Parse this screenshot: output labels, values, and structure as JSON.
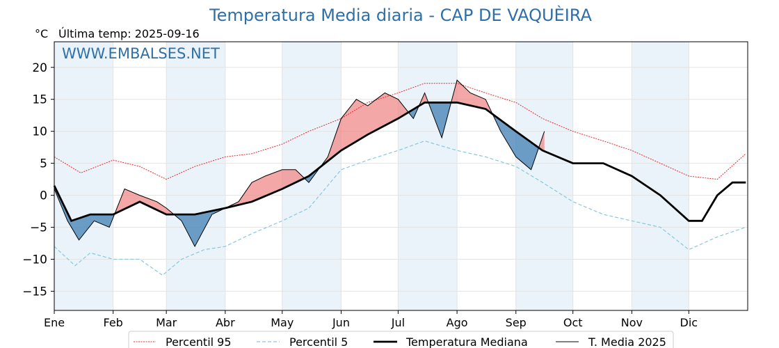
{
  "chart_data": {
    "type": "line",
    "title": "Temperatura Media diaria - CAP DE VAQUÈIRA",
    "ylabel": "°C",
    "last_update": "Última temp: 2025-09-16",
    "watermark": "WWW.EMBALSES.NET",
    "ylim": [
      -18,
      24
    ],
    "yticks": [
      "20",
      "15",
      "10",
      "5",
      "0",
      "−5",
      "−10",
      "−15"
    ],
    "ytick_values": [
      20,
      15,
      10,
      5,
      0,
      -5,
      -10,
      -15
    ],
    "months": [
      "Ene",
      "Feb",
      "Mar",
      "Abr",
      "May",
      "Jun",
      "Jul",
      "Ago",
      "Sep",
      "Oct",
      "Nov",
      "Dic"
    ],
    "month_start_days": [
      1,
      32,
      60,
      91,
      121,
      152,
      182,
      213,
      244,
      274,
      305,
      335
    ],
    "legend": {
      "p95": "Percentil 95",
      "p5": "Percentil 5",
      "median": "Temperatura Mediana",
      "y2025": "T. Media 2025"
    },
    "colors": {
      "p95": "#e8262a",
      "p5": "#87c8dc",
      "median": "#000000",
      "y2025": "#000000",
      "above": "#f08a8a",
      "below": "#3f7fb3",
      "band": "#eaf2fa",
      "grid": "#e3e3e3"
    },
    "series": [
      {
        "name": "Percentil 95",
        "key": "p95",
        "x": [
          1,
          15,
          32,
          46,
          60,
          75,
          91,
          105,
          121,
          135,
          152,
          166,
          182,
          196,
          213,
          228,
          244,
          258,
          274,
          290,
          305,
          320,
          335,
          350,
          365
        ],
        "values": [
          6,
          3.5,
          5.5,
          4.5,
          2.5,
          4.5,
          6,
          6.5,
          8,
          10,
          12,
          14.5,
          16,
          17.5,
          17.5,
          16,
          14.5,
          12,
          10,
          8.5,
          7,
          5,
          3,
          2.5,
          6.5
        ]
      },
      {
        "name": "Percentil 5",
        "key": "p5",
        "x": [
          1,
          12,
          20,
          32,
          46,
          58,
          68,
          80,
          91,
          105,
          121,
          135,
          152,
          166,
          182,
          196,
          213,
          228,
          244,
          258,
          274,
          290,
          305,
          320,
          335,
          350,
          365
        ],
        "values": [
          -8,
          -11,
          -9,
          -10,
          -10,
          -12.5,
          -10,
          -8.5,
          -8,
          -6,
          -4,
          -2,
          4,
          5.5,
          7,
          8.5,
          7,
          6,
          4.5,
          2,
          -1,
          -3,
          -4,
          -5,
          -8.5,
          -6.5,
          -5
        ]
      },
      {
        "name": "Temperatura Mediana",
        "key": "median",
        "x": [
          1,
          10,
          20,
          32,
          46,
          60,
          75,
          91,
          105,
          121,
          135,
          152,
          166,
          182,
          196,
          213,
          228,
          244,
          258,
          274,
          290,
          305,
          320,
          335,
          342,
          350,
          358,
          365
        ],
        "values": [
          1.5,
          -4,
          -3,
          -3,
          -1,
          -3,
          -3,
          -2,
          -1,
          1,
          3,
          7,
          9.5,
          12,
          14.5,
          14.5,
          13.5,
          10,
          7,
          5,
          5,
          3,
          0,
          -4,
          -4,
          0,
          2,
          2
        ]
      },
      {
        "name": "T. Media 2025",
        "key": "y2025",
        "x": [
          1,
          8,
          14,
          22,
          30,
          38,
          46,
          55,
          60,
          68,
          75,
          84,
          91,
          98,
          105,
          112,
          121,
          128,
          135,
          145,
          152,
          160,
          166,
          175,
          182,
          190,
          196,
          205,
          213,
          220,
          228,
          236,
          244,
          252,
          259
        ],
        "values": [
          1,
          -4,
          -7,
          -4,
          -5,
          1,
          0,
          -1,
          -2,
          -4,
          -8,
          -3,
          -2,
          -1,
          2,
          3,
          4,
          4,
          2,
          6,
          12,
          15,
          14,
          16,
          15,
          12,
          16,
          9,
          18,
          16,
          15,
          10,
          6,
          4,
          10
        ]
      }
    ]
  }
}
